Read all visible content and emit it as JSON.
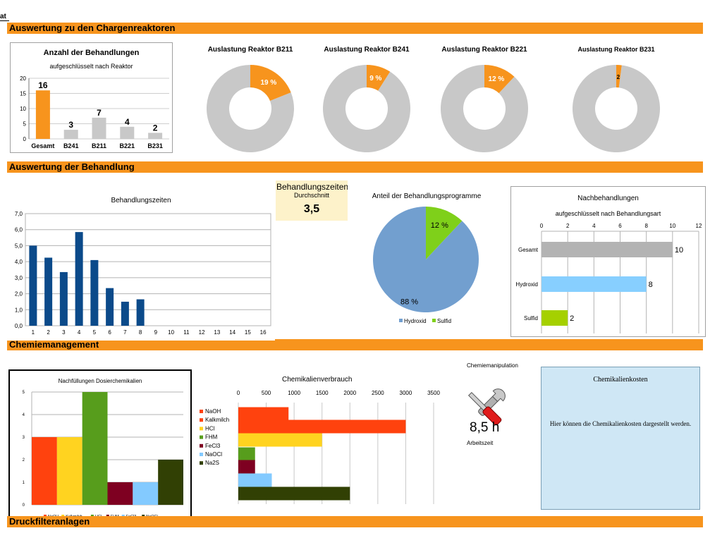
{
  "corner_label": "at",
  "sections": {
    "s1": "Auswertung zu den Chargenreaktoren",
    "s2": "Auswertung der Behandlung",
    "s3": "Chemiemanagement",
    "s4": "Druckfilteranlagen"
  },
  "colors": {
    "orange": "#f7941d",
    "gray": "#c8c8c8",
    "blue": "#0b4a8a",
    "pie_blue": "#729fcf",
    "green": "#7fd01a",
    "light_blue": "#87cfff",
    "lime": "#a5d000"
  },
  "charts": {
    "behandlungen": {
      "title": "Anzahl der Behandlungen",
      "subtitle": "aufgeschlüsselt nach Reaktor",
      "chart_data": {
        "type": "bar",
        "title": "Anzahl der Behandlungen",
        "subtitle": "aufgeschlüsselt nach Reaktor",
        "categories": [
          "Gesamt",
          "B241",
          "B211",
          "B221",
          "B231"
        ],
        "values": [
          16,
          3,
          7,
          4,
          2
        ],
        "ylim": [
          0,
          20
        ],
        "yticks": [
          0,
          5,
          10,
          15,
          20
        ],
        "colors": [
          "#f7941d",
          "#c8c8c8",
          "#c8c8c8",
          "#c8c8c8",
          "#c8c8c8"
        ]
      }
    },
    "donuts": [
      {
        "title": "Auslastung Reaktor B211",
        "label": "19 %",
        "value": 19
      },
      {
        "title": "Auslastung Reaktor B241",
        "label": "9 %",
        "value": 9
      },
      {
        "title": "Auslastung Reaktor B221",
        "label": "12 %",
        "value": 12
      },
      {
        "title": "Auslastung Reaktor B231",
        "label": "2",
        "value": 2
      }
    ],
    "zeiten": {
      "title": "Behandlungszeiten",
      "chart_data": {
        "type": "bar",
        "title": "Behandlungszeiten",
        "categories": [
          "1",
          "2",
          "3",
          "4",
          "5",
          "6",
          "7",
          "8",
          "9",
          "10",
          "11",
          "12",
          "13",
          "14",
          "15",
          "16"
        ],
        "values": [
          5.0,
          4.25,
          3.35,
          5.85,
          4.1,
          2.35,
          1.5,
          1.65,
          null,
          null,
          null,
          null,
          null,
          null,
          null,
          null
        ],
        "ylim": [
          0,
          7
        ],
        "yticks": [
          "0,0",
          "1,0",
          "2,0",
          "3,0",
          "4,0",
          "5,0",
          "6,0",
          "7,0"
        ]
      }
    },
    "durchschnitt": {
      "title": "Behandlungszeiten",
      "subtitle": "Durchschnitt",
      "value": "3,5"
    },
    "programme": {
      "title": "Anteil der Behandlungsprogramme",
      "chart_data": {
        "type": "pie",
        "title": "Anteil der Behandlungsprogramme",
        "labels": [
          "Hydroxid",
          "Sulfid"
        ],
        "values": [
          88,
          12
        ],
        "value_labels": [
          "88 %",
          "12 %"
        ],
        "colors": [
          "#729fcf",
          "#7fd01a"
        ],
        "legend": "bottom"
      }
    },
    "nach": {
      "title": "Nachbehandlungen",
      "subtitle": "aufgeschlüsselt nach Behandlungsart",
      "chart_data": {
        "type": "bar",
        "orientation": "horizontal",
        "title": "Nachbehandlungen",
        "subtitle": "aufgeschlüsselt nach Behandlungsart",
        "categories": [
          "Gesamt",
          "Hydroxid",
          "Sulfid"
        ],
        "values": [
          10,
          8,
          2
        ],
        "xlim": [
          0,
          12
        ],
        "xticks": [
          0,
          2,
          4,
          6,
          8,
          10,
          12
        ],
        "colors": [
          "#b3b3b3",
          "#87cfff",
          "#a5d000"
        ]
      }
    },
    "nachfuellungen": {
      "title": "Nachfüllungen Dosierchemikalien",
      "chart_data": {
        "type": "bar",
        "title": "Nachfüllungen Dosierchemikalien",
        "series": [
          {
            "name": "NaOH",
            "value": 3,
            "color": "#ff420e"
          },
          {
            "name": "Kalkmilch",
            "value": 3,
            "color": "#ffd320"
          },
          {
            "name": "HCl",
            "value": 5,
            "color": "#579d1c"
          },
          {
            "name": "FHM",
            "value": 1,
            "color": "#7e0021"
          },
          {
            "name": "FeCl3",
            "value": 1,
            "color": "#83caff"
          },
          {
            "name": "NaOCl",
            "value": 2,
            "color": "#314004"
          }
        ],
        "ylim": [
          0,
          5
        ],
        "yticks": [
          0,
          1,
          2,
          3,
          4,
          5
        ],
        "legend": "bottom"
      }
    },
    "verbrauch": {
      "title": "Chemikalienverbrauch",
      "chart_data": {
        "type": "bar",
        "orientation": "horizontal",
        "title": "Chemikalienverbrauch",
        "series": [
          {
            "name": "NaOH",
            "value": 900,
            "color": "#ff420e"
          },
          {
            "name": "Kalkmilch",
            "value": 3000,
            "color": "#ff420e"
          },
          {
            "name": "HCl",
            "value": 1500,
            "color": "#ffd320"
          },
          {
            "name": "FHM",
            "value": 300,
            "color": "#579d1c"
          },
          {
            "name": "FeCl3",
            "value": 300,
            "color": "#7e0021"
          },
          {
            "name": "NaOCl",
            "value": 600,
            "color": "#83caff"
          },
          {
            "name": "Na2S",
            "value": 2000,
            "color": "#314004"
          }
        ],
        "xlim": [
          0,
          3500
        ],
        "xticks": [
          0,
          500,
          1000,
          1500,
          2000,
          2500,
          3000,
          3500
        ],
        "legend": "left"
      }
    }
  },
  "manipulation": {
    "title": "Chemiemanipulation",
    "value": "8,5 h",
    "sub": "Arbeitszeit"
  },
  "kosten": {
    "title": "Chemikalienkosten",
    "text": "Hier können die Chemikalienkosten dargestellt werden."
  }
}
